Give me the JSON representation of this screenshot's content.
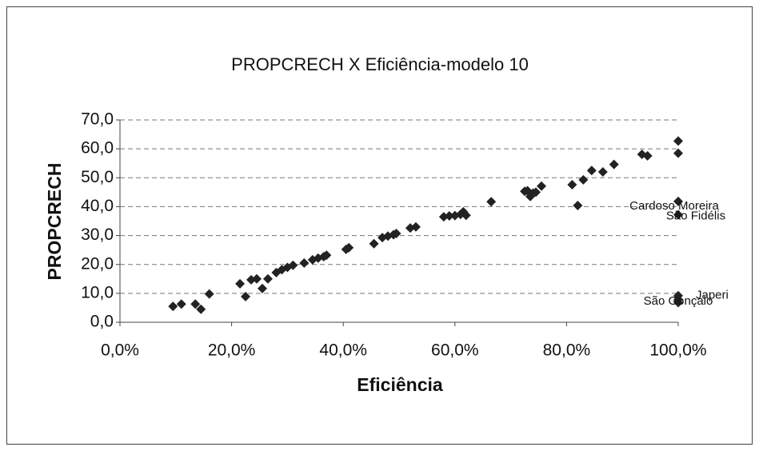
{
  "chart_data": {
    "type": "scatter",
    "title": "PROPCRECH X Eficiência-modelo 10",
    "x_label": "Eficiência",
    "y_label": "PROPCRECH",
    "x": [
      9.5,
      11,
      13.5,
      14.5,
      16,
      21.5,
      22.5,
      23.5,
      24.5,
      25.5,
      26.5,
      28,
      29,
      30,
      31,
      33,
      34.5,
      35.5,
      36.5,
      37,
      40.5,
      41,
      45.5,
      47,
      48,
      49,
      49.5,
      52,
      53,
      58,
      59,
      60,
      61,
      61.5,
      62,
      66.5,
      72.5,
      73,
      73.5,
      74,
      74.5,
      75.5,
      81,
      82,
      83,
      84.5,
      86.5,
      88.5,
      93.5,
      94.5,
      100,
      100,
      100,
      100,
      100,
      100,
      100
    ],
    "values": [
      5.5,
      6.3,
      6.3,
      4.5,
      9.8,
      13.3,
      8.9,
      14.7,
      15.0,
      11.7,
      15.0,
      17.2,
      18.2,
      19.0,
      19.7,
      20.5,
      21.6,
      22.2,
      22.7,
      23.2,
      25.2,
      25.8,
      27.2,
      29.3,
      29.8,
      30.3,
      30.7,
      32.6,
      33.0,
      36.5,
      36.8,
      36.9,
      37.3,
      38.2,
      37.0,
      41.7,
      45.3,
      45.5,
      43.5,
      44.7,
      45.0,
      47.1,
      47.6,
      40.4,
      49.3,
      52.5,
      52.0,
      54.6,
      58.1,
      57.6,
      62.7,
      58.5,
      41.8,
      37.2,
      9.2,
      7.8,
      6.8
    ],
    "color": "#222222",
    "xlim": [
      0,
      100
    ],
    "xticks": [
      {
        "value": 0,
        "label": "0,0%"
      },
      {
        "value": 20,
        "label": "20,0%"
      },
      {
        "value": 40,
        "label": "40,0%"
      },
      {
        "value": 60,
        "label": "60,0%"
      },
      {
        "value": 80,
        "label": "80,0%"
      },
      {
        "value": 100,
        "label": "100,0%"
      }
    ],
    "ylim": [
      0,
      70
    ],
    "yticks": [
      {
        "value": 0,
        "label": "0,0"
      },
      {
        "value": 10,
        "label": "10,0"
      },
      {
        "value": 20,
        "label": "20,0"
      },
      {
        "value": 30,
        "label": "30,0"
      },
      {
        "value": 40,
        "label": "40,0"
      },
      {
        "value": 50,
        "label": "50,0"
      },
      {
        "value": 60,
        "label": "60,0"
      },
      {
        "value": 70,
        "label": "70,0"
      }
    ],
    "grid": true,
    "annotations": [
      {
        "text": "Cardoso Moreira",
        "x": 100,
        "y": 41.8
      },
      {
        "text": "São Fidélis",
        "x": 100,
        "y": 37.2
      },
      {
        "text": "Japeri",
        "x": 100,
        "y": 9.2
      },
      {
        "text": "São Gonçalo",
        "x": 100,
        "y": 7.8
      }
    ]
  }
}
